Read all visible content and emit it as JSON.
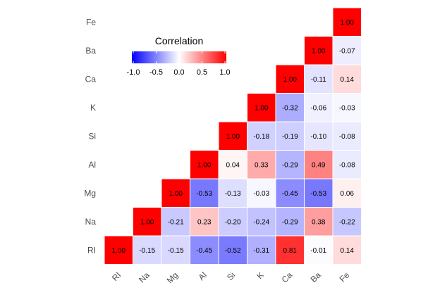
{
  "chart_data": {
    "type": "heatmap",
    "title": "",
    "xlabel": "",
    "ylabel": "",
    "x_categories": [
      "RI",
      "Na",
      "Mg",
      "Al",
      "Si",
      "K",
      "Ca",
      "Ba",
      "Fe"
    ],
    "y_categories": [
      "RI",
      "Na",
      "Mg",
      "Al",
      "Si",
      "K",
      "Ca",
      "Ba",
      "Fe"
    ],
    "cells": [
      {
        "x": "RI",
        "y": "RI",
        "value": 1.0,
        "label": "1.00"
      },
      {
        "x": "Na",
        "y": "RI",
        "value": -0.15,
        "label": "-0.15"
      },
      {
        "x": "Mg",
        "y": "RI",
        "value": -0.15,
        "label": "-0.15"
      },
      {
        "x": "Al",
        "y": "RI",
        "value": -0.45,
        "label": "-0.45"
      },
      {
        "x": "Si",
        "y": "RI",
        "value": -0.52,
        "label": "-0.52"
      },
      {
        "x": "K",
        "y": "RI",
        "value": -0.31,
        "label": "-0.31"
      },
      {
        "x": "Ca",
        "y": "RI",
        "value": 0.81,
        "label": "0.81"
      },
      {
        "x": "Ba",
        "y": "RI",
        "value": -0.01,
        "label": "-0.01"
      },
      {
        "x": "Fe",
        "y": "RI",
        "value": 0.14,
        "label": "0.14"
      },
      {
        "x": "Na",
        "y": "Na",
        "value": 1.0,
        "label": "1.00"
      },
      {
        "x": "Mg",
        "y": "Na",
        "value": -0.21,
        "label": "-0.21"
      },
      {
        "x": "Al",
        "y": "Na",
        "value": 0.23,
        "label": "0.23"
      },
      {
        "x": "Si",
        "y": "Na",
        "value": -0.2,
        "label": "-0.20"
      },
      {
        "x": "K",
        "y": "Na",
        "value": -0.24,
        "label": "-0.24"
      },
      {
        "x": "Ca",
        "y": "Na",
        "value": -0.29,
        "label": "-0.29"
      },
      {
        "x": "Ba",
        "y": "Na",
        "value": 0.38,
        "label": "0.38"
      },
      {
        "x": "Fe",
        "y": "Na",
        "value": -0.22,
        "label": "-0.22"
      },
      {
        "x": "Mg",
        "y": "Mg",
        "value": 1.0,
        "label": "1.00"
      },
      {
        "x": "Al",
        "y": "Mg",
        "value": -0.53,
        "label": "-0.53"
      },
      {
        "x": "Si",
        "y": "Mg",
        "value": -0.13,
        "label": "-0.13"
      },
      {
        "x": "K",
        "y": "Mg",
        "value": -0.03,
        "label": "-0.03"
      },
      {
        "x": "Ca",
        "y": "Mg",
        "value": -0.45,
        "label": "-0.45"
      },
      {
        "x": "Ba",
        "y": "Mg",
        "value": -0.53,
        "label": "-0.53"
      },
      {
        "x": "Fe",
        "y": "Mg",
        "value": 0.06,
        "label": "0.06"
      },
      {
        "x": "Al",
        "y": "Al",
        "value": 1.0,
        "label": "1.00"
      },
      {
        "x": "Si",
        "y": "Al",
        "value": 0.04,
        "label": "0.04"
      },
      {
        "x": "K",
        "y": "Al",
        "value": 0.33,
        "label": "0.33"
      },
      {
        "x": "Ca",
        "y": "Al",
        "value": -0.29,
        "label": "-0.29"
      },
      {
        "x": "Ba",
        "y": "Al",
        "value": 0.49,
        "label": "0.49"
      },
      {
        "x": "Fe",
        "y": "Al",
        "value": -0.08,
        "label": "-0.08"
      },
      {
        "x": "Si",
        "y": "Si",
        "value": 1.0,
        "label": "1.00"
      },
      {
        "x": "K",
        "y": "Si",
        "value": -0.18,
        "label": "-0.18"
      },
      {
        "x": "Ca",
        "y": "Si",
        "value": -0.19,
        "label": "-0.19"
      },
      {
        "x": "Ba",
        "y": "Si",
        "value": -0.1,
        "label": "-0.10"
      },
      {
        "x": "Fe",
        "y": "Si",
        "value": -0.08,
        "label": "-0.08"
      },
      {
        "x": "K",
        "y": "K",
        "value": 1.0,
        "label": "1.00"
      },
      {
        "x": "Ca",
        "y": "K",
        "value": -0.32,
        "label": "-0.32"
      },
      {
        "x": "Ba",
        "y": "K",
        "value": -0.06,
        "label": "-0.06"
      },
      {
        "x": "Fe",
        "y": "K",
        "value": -0.03,
        "label": "-0.03"
      },
      {
        "x": "Ca",
        "y": "Ca",
        "value": 1.0,
        "label": "1.00"
      },
      {
        "x": "Ba",
        "y": "Ca",
        "value": -0.11,
        "label": "-0.11"
      },
      {
        "x": "Fe",
        "y": "Ca",
        "value": 0.14,
        "label": "0.14"
      },
      {
        "x": "Ba",
        "y": "Ba",
        "value": 1.0,
        "label": "1.00"
      },
      {
        "x": "Fe",
        "y": "Ba",
        "value": -0.07,
        "label": "-0.07"
      },
      {
        "x": "Fe",
        "y": "Fe",
        "value": 1.0,
        "label": "1.00"
      }
    ],
    "legend": {
      "title": "Correlation",
      "placement": "top-left",
      "range": [
        -1.0,
        1.0
      ],
      "ticks": [
        "-1.0",
        "-0.5",
        "0.0",
        "0.5",
        "1.0"
      ],
      "tick_values": [
        -1.0,
        -0.5,
        0.0,
        0.5,
        1.0
      ]
    },
    "colors": {
      "low": "#0000ff",
      "mid": "#ffffff",
      "high": "#ff0000"
    },
    "grid": false
  }
}
